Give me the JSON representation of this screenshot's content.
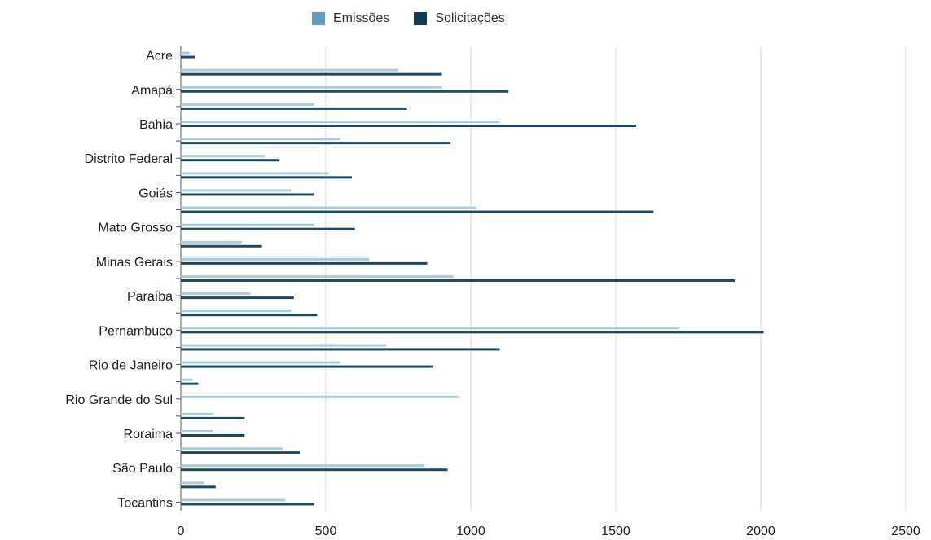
{
  "chart_data": {
    "type": "bar",
    "orientation": "horizontal",
    "categories": [
      "Acre",
      "",
      "Amapá",
      "",
      "Bahia",
      "",
      "Distrito Federal",
      "",
      "Goiás",
      "",
      "Mato Grosso",
      "",
      "Minas Gerais",
      "",
      "Paraíba",
      "",
      "Pernambuco",
      "",
      "Rio de Janeiro",
      "",
      "Rio Grande do Sul",
      "",
      "Roraima",
      "",
      "São Paulo",
      "",
      "Tocantins"
    ],
    "series": [
      {
        "name": "Emissões",
        "color": "#a9cbe0",
        "values": [
          30,
          750,
          900,
          460,
          1100,
          550,
          290,
          510,
          380,
          1020,
          460,
          210,
          650,
          940,
          240,
          380,
          1720,
          710,
          550,
          40,
          960,
          110,
          110,
          350,
          840,
          80,
          360
        ]
      },
      {
        "name": "Solicitações",
        "color": "#1b4a66",
        "values": [
          50,
          900,
          1130,
          780,
          1570,
          930,
          340,
          590,
          460,
          1630,
          600,
          280,
          850,
          1910,
          390,
          470,
          2010,
          1100,
          870,
          60,
          0,
          220,
          220,
          410,
          920,
          120,
          460
        ]
      }
    ],
    "xticks": [
      "0",
      "500",
      "1000",
      "1500",
      "2000",
      "2500"
    ],
    "xlim": [
      0,
      2500
    ],
    "grid": true,
    "legend_position": "top"
  }
}
